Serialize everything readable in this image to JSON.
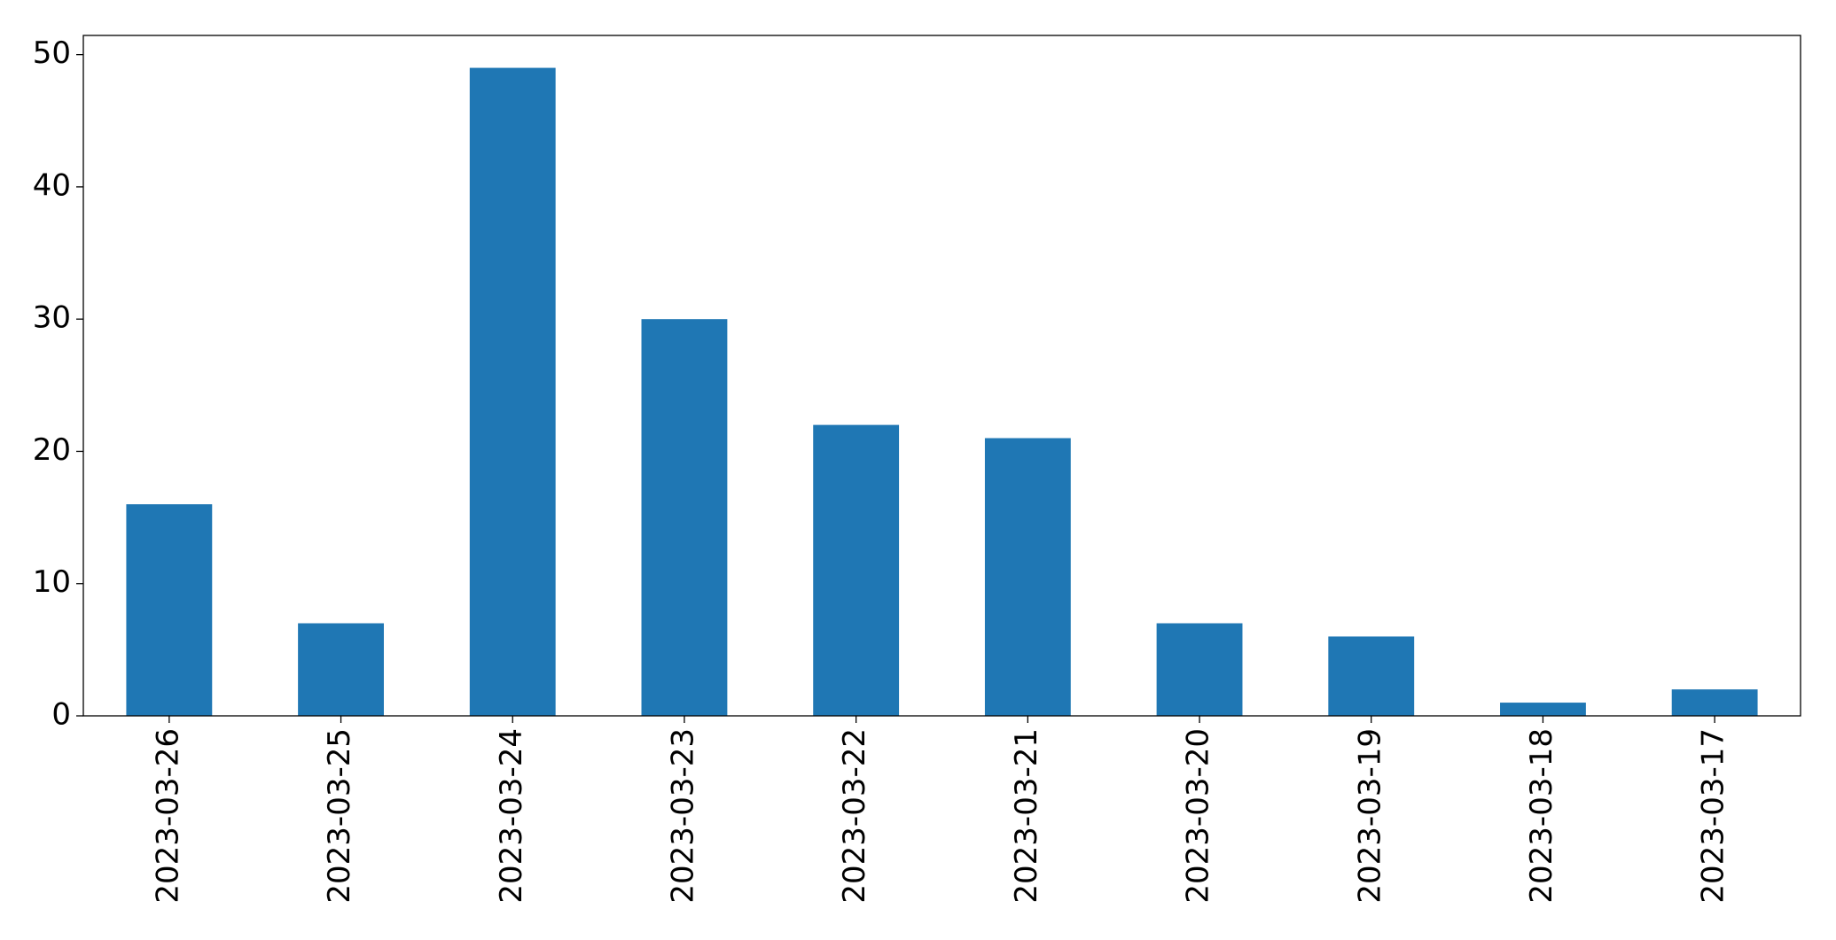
{
  "chart_data": {
    "type": "bar",
    "categories": [
      "2023-03-26",
      "2023-03-25",
      "2023-03-24",
      "2023-03-23",
      "2023-03-22",
      "2023-03-21",
      "2023-03-20",
      "2023-03-19",
      "2023-03-18",
      "2023-03-17"
    ],
    "values": [
      16,
      7,
      49,
      30,
      22,
      21,
      7,
      6,
      1,
      2
    ],
    "color": "#1f77b4",
    "ylim": [
      0,
      51.45
    ],
    "yticks": [
      0,
      10,
      20,
      30,
      40,
      50
    ],
    "grid": false
  }
}
